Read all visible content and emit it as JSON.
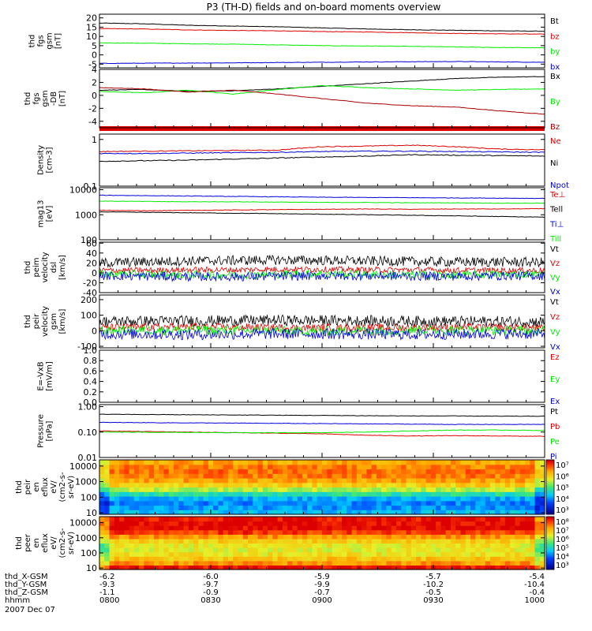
{
  "title": "P3 (TH-D) fields and on-board moments overview",
  "date_label": "2007 Dec 07",
  "colors": {
    "black": "#000000",
    "red": "#e00000",
    "darkred": "#aa0000",
    "green": "#00ee00",
    "blue": "#0000dd",
    "axis": "#000000"
  },
  "chart_data": [
    {
      "type": "line",
      "id": "fgs",
      "ylabel": [
        "thd",
        "fgs",
        "gsm",
        "[nT]"
      ],
      "ylim": [
        -7,
        22
      ],
      "scale": "linear",
      "yticks": [
        -5,
        0,
        5,
        10,
        15,
        20
      ],
      "series": [
        {
          "name": "Bt",
          "color": "black",
          "values": [
            17.2,
            16.8,
            16.0,
            15.6,
            15.2,
            14.6,
            14.0,
            13.6,
            13.3,
            13.0,
            12.8
          ]
        },
        {
          "name": "bz",
          "color": "red",
          "values": [
            14.2,
            14.0,
            13.5,
            13.2,
            13.0,
            12.6,
            12.4,
            12.0,
            11.6,
            11.4,
            11.2
          ]
        },
        {
          "name": "by",
          "color": "green",
          "values": [
            6.5,
            6.3,
            6.0,
            5.8,
            5.4,
            5.0,
            4.8,
            4.6,
            4.3,
            4.0,
            3.8
          ]
        },
        {
          "name": "bx",
          "color": "blue",
          "values": [
            -4.6,
            -4.5,
            -4.4,
            -4.3,
            -4.1,
            -4.0,
            -3.8,
            -3.7,
            -3.6,
            -3.8,
            -4.0
          ]
        }
      ]
    },
    {
      "type": "line",
      "id": "fgs_db",
      "ylabel": [
        "thd",
        "fgs",
        "gsm",
        "-DB",
        "[nT]"
      ],
      "ylim": [
        -5,
        4
      ],
      "scale": "linear",
      "yticks": [
        -4,
        -2,
        0,
        2,
        4
      ],
      "series": [
        {
          "name": "Bx",
          "color": "black",
          "values": [
            0.8,
            0.9,
            0.6,
            0.7,
            1.0,
            1.4,
            1.8,
            2.2,
            2.6,
            2.8,
            2.9
          ]
        },
        {
          "name": "By",
          "color": "green",
          "values": [
            0.6,
            0.4,
            0.8,
            0.2,
            0.9,
            1.5,
            1.2,
            1.0,
            0.8,
            0.9,
            1.0
          ]
        },
        {
          "name": "Bz",
          "color": "darkred",
          "values": [
            1.2,
            1.0,
            0.5,
            0.8,
            0.2,
            -0.5,
            -1.2,
            -1.6,
            -1.8,
            -2.4,
            -2.9
          ]
        }
      ]
    },
    {
      "type": "line",
      "id": "density",
      "ylabel": [
        "Density",
        "[cm-3]"
      ],
      "ylim": [
        0.1,
        1.3
      ],
      "scale": "log",
      "yticks": [
        0.1,
        1.0
      ],
      "series": [
        {
          "name": "Ne",
          "color": "red",
          "values": [
            0.55,
            0.56,
            0.57,
            0.58,
            0.59,
            0.7,
            0.72,
            0.75,
            0.7,
            0.62,
            0.6
          ]
        },
        {
          "name": "Ni",
          "color": "black",
          "values": [
            0.34,
            0.35,
            0.36,
            0.38,
            0.4,
            0.42,
            0.44,
            0.47,
            0.46,
            0.45,
            0.44
          ]
        },
        {
          "name": "Npot",
          "color": "blue",
          "values": [
            0.5,
            0.5,
            0.51,
            0.52,
            0.53,
            0.55,
            0.56,
            0.56,
            0.55,
            0.54,
            0.53
          ]
        }
      ]
    },
    {
      "type": "line",
      "id": "temp",
      "ylabel": [
        "mag13",
        "[eV]"
      ],
      "ylim": [
        100,
        12000
      ],
      "scale": "log",
      "yticks": [
        100,
        1000,
        10000
      ],
      "series": [
        {
          "name": "Te⊥",
          "color": "red",
          "values": [
            1500,
            1450,
            1500,
            1550,
            1600,
            1650,
            1700,
            1650,
            1700,
            1700,
            1750
          ]
        },
        {
          "name": "Tell",
          "color": "black",
          "values": [
            1300,
            1250,
            1200,
            1150,
            1100,
            1050,
            1000,
            950,
            900,
            850,
            800
          ]
        },
        {
          "name": "Ti⊥",
          "color": "blue",
          "values": [
            6000,
            5800,
            5600,
            5400,
            5200,
            5000,
            4900,
            4800,
            4700,
            4600,
            4500
          ]
        },
        {
          "name": "Till",
          "color": "green",
          "values": [
            3500,
            3400,
            3300,
            3300,
            3200,
            3100,
            3100,
            3000,
            3000,
            2900,
            2900
          ]
        }
      ]
    },
    {
      "type": "line",
      "id": "peim",
      "ylabel": [
        "thd",
        "peim",
        "velocity",
        "dsl",
        "[km/s]"
      ],
      "ylim": [
        -40,
        62
      ],
      "scale": "linear",
      "yticks": [
        -40,
        -20,
        0,
        20,
        40,
        60
      ],
      "noisy": true,
      "series": [
        {
          "name": "Vt",
          "color": "black",
          "values": [
            20,
            22,
            24,
            25,
            26,
            25,
            24,
            23,
            22,
            22,
            21
          ],
          "noise": 10
        },
        {
          "name": "Vz",
          "color": "red",
          "values": [
            5,
            5,
            6,
            6,
            7,
            7,
            6,
            6,
            5,
            5,
            5
          ],
          "noise": 6
        },
        {
          "name": "Vy",
          "color": "green",
          "values": [
            -2,
            -3,
            -4,
            -4,
            -3,
            -2,
            -3,
            -4,
            -4,
            -3,
            -3
          ],
          "noise": 8
        },
        {
          "name": "Vx",
          "color": "blue",
          "values": [
            -6,
            -7,
            -8,
            -8,
            -7,
            -6,
            -6,
            -7,
            -7,
            -6,
            -6
          ],
          "noise": 9
        }
      ]
    },
    {
      "type": "line",
      "id": "peir",
      "ylabel": [
        "thd",
        "peir",
        "velocity",
        "gsm",
        "[km/s]"
      ],
      "ylim": [
        -110,
        230
      ],
      "scale": "linear",
      "yticks": [
        -100,
        0,
        100,
        200
      ],
      "noisy": true,
      "series": [
        {
          "name": "Vt",
          "color": "black",
          "values": [
            60,
            62,
            64,
            66,
            68,
            66,
            64,
            62,
            60,
            60,
            58
          ],
          "noise": 35
        },
        {
          "name": "Vz",
          "color": "red",
          "values": [
            20,
            22,
            24,
            22,
            20,
            18,
            18,
            20,
            22,
            20,
            18
          ],
          "noise": 25
        },
        {
          "name": "Vy",
          "color": "green",
          "values": [
            0,
            2,
            4,
            2,
            0,
            -2,
            0,
            2,
            4,
            2,
            0
          ],
          "noise": 30
        },
        {
          "name": "Vx",
          "color": "blue",
          "values": [
            -20,
            -22,
            -24,
            -22,
            -20,
            -20,
            -22,
            -24,
            -22,
            -20,
            -20
          ],
          "noise": 35
        }
      ]
    },
    {
      "type": "line",
      "id": "efield",
      "ylabel": [
        "E=-VxB",
        "[mV/m]"
      ],
      "ylim": [
        0,
        1.0
      ],
      "scale": "linear",
      "yticks": [
        0.0,
        0.2,
        0.4,
        0.6,
        0.8,
        1.0
      ],
      "ytick_labels": [
        "0.0",
        "0.2",
        "0.4",
        "0.6",
        "0.8",
        "1.0"
      ],
      "series": [
        {
          "name": "Ez",
          "color": "red",
          "values": []
        },
        {
          "name": "Ey",
          "color": "green",
          "values": []
        },
        {
          "name": "Ex",
          "color": "blue",
          "values": []
        }
      ]
    },
    {
      "type": "line",
      "id": "pressure",
      "ylabel": [
        "Pressure",
        "[nPa]"
      ],
      "ylim": [
        0.01,
        1.2
      ],
      "scale": "log",
      "yticks": [
        0.01,
        0.1,
        1.0
      ],
      "ytick_labels": [
        "0.01",
        "0.10",
        "1.00"
      ],
      "series": [
        {
          "name": "Pt",
          "color": "black",
          "values": [
            0.5,
            0.49,
            0.48,
            0.47,
            0.46,
            0.45,
            0.44,
            0.43,
            0.43,
            0.42,
            0.42
          ]
        },
        {
          "name": "Pb",
          "color": "red",
          "values": [
            0.11,
            0.105,
            0.1,
            0.095,
            0.09,
            0.085,
            0.075,
            0.07,
            0.072,
            0.07,
            0.068
          ]
        },
        {
          "name": "Pe",
          "color": "green",
          "values": [
            0.1,
            0.098,
            0.096,
            0.095,
            0.094,
            0.095,
            0.1,
            0.11,
            0.12,
            0.12,
            0.115
          ]
        },
        {
          "name": "Pi",
          "color": "blue",
          "values": [
            0.24,
            0.235,
            0.23,
            0.225,
            0.22,
            0.215,
            0.21,
            0.205,
            0.2,
            0.2,
            0.2
          ]
        }
      ]
    },
    {
      "type": "heatmap",
      "id": "peir_eflux",
      "ylabel": [
        "thd",
        "peir",
        "en",
        "eflux",
        "eV/",
        "(cm2-s-",
        "sr-eV)"
      ],
      "ylim": [
        8,
        25000
      ],
      "scale": "log",
      "yticks": [
        10,
        100,
        1000,
        10000
      ],
      "colorbar": {
        "ticks": [
          "10³",
          "10⁴",
          "10⁵",
          "10⁶",
          "10⁷"
        ]
      },
      "rows": [
        0.35,
        0.3,
        0.28,
        0.33,
        0.45,
        0.6,
        0.72,
        0.8,
        0.85,
        0.87,
        0.85,
        0.8
      ]
    },
    {
      "type": "heatmap",
      "id": "peer_eflux",
      "ylabel": [
        "thd",
        "peer",
        "en",
        "eflux",
        "eV/",
        "(cm2-s-",
        "sr-eV)"
      ],
      "ylim": [
        8,
        25000
      ],
      "scale": "log",
      "yticks": [
        10,
        100,
        1000,
        10000
      ],
      "colorbar": {
        "ticks": [
          "10³",
          "10⁴",
          "10⁵",
          "10⁶",
          "10⁷",
          "10⁸"
        ]
      },
      "rows": [
        0.98,
        0.82,
        0.75,
        0.68,
        0.66,
        0.67,
        0.72,
        0.82,
        0.93,
        1.0,
        1.0,
        0.98
      ]
    }
  ],
  "x_axis": {
    "rows": [
      {
        "label": "thd_X-GSM",
        "values": [
          "-6.2",
          "-6.0",
          "-5.9",
          "-5.7",
          "-5.4"
        ]
      },
      {
        "label": "thd_Y-GSM",
        "values": [
          "-9.3",
          "-9.7",
          "-9.9",
          "-10.2",
          "-10.4"
        ]
      },
      {
        "label": "thd_Z-GSM",
        "values": [
          "-1.1",
          "-0.9",
          "-0.7",
          "-0.5",
          "-0.4"
        ]
      },
      {
        "label": "hhmm",
        "values": [
          "0800",
          "0830",
          "0900",
          "0930",
          "1000"
        ]
      }
    ]
  }
}
